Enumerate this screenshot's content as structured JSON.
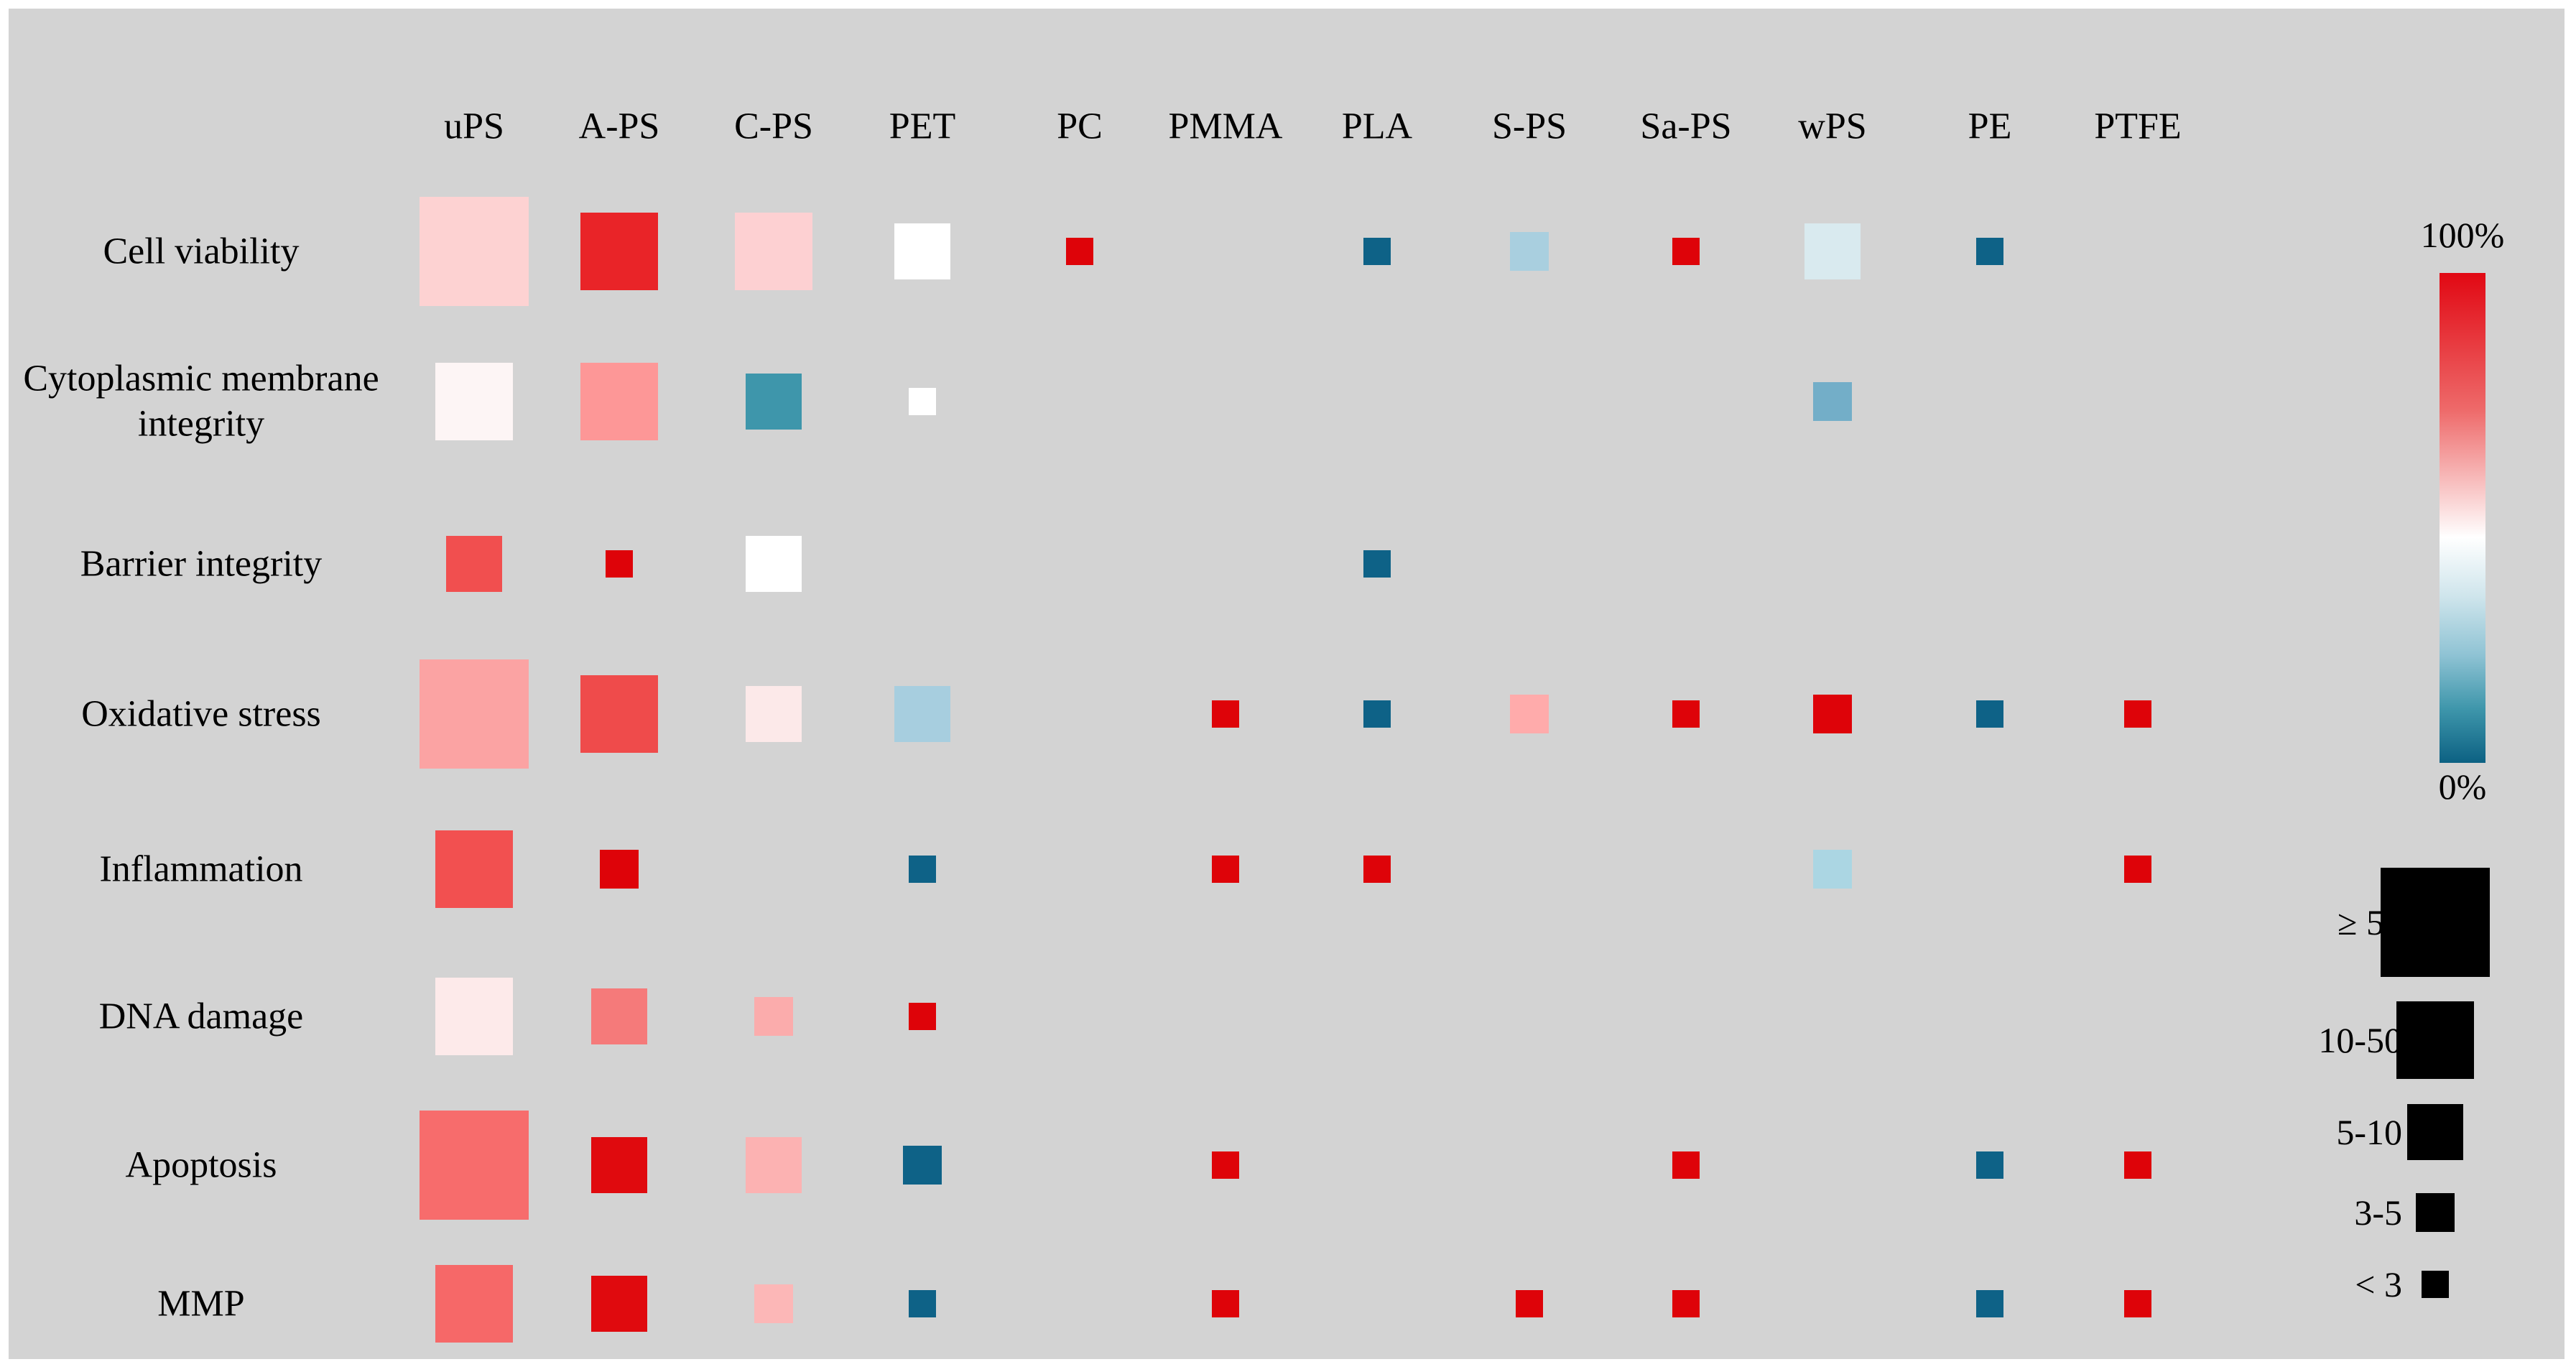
{
  "chart_data": {
    "type": "heatmap",
    "title": "",
    "x_axis_label": "",
    "y_axis_label": "",
    "columns": [
      "uPS",
      "A-PS",
      "C-PS",
      "PET",
      "PC",
      "PMMA",
      "PLA",
      "S-PS",
      "Sa-PS",
      "wPS",
      "PE",
      "PTFE"
    ],
    "rows": [
      "Cell viability",
      "Cytoplasmic membrane integrity",
      "Barrier integrity",
      "Oxidative stress",
      "Inflammation",
      "DNA damage",
      "Apoptosis",
      "MMP"
    ],
    "legend": {
      "color_scale": {
        "top_label": "100%",
        "bottom_label": "0%",
        "stops": [
          [
            "#e10813",
            0
          ],
          [
            "#ee6a6a",
            28
          ],
          [
            "#ffffff",
            54
          ],
          [
            "#cfe5ec",
            66
          ],
          [
            "#8fc3d4",
            78
          ],
          [
            "#3e96ab",
            89
          ],
          [
            "#0c6183",
            100
          ]
        ]
      },
      "size_scale": {
        "square_color": "#000000",
        "entries": [
          {
            "label": "≥ 50",
            "studies": "≥ 50"
          },
          {
            "label": "10-50",
            "studies": "10-50"
          },
          {
            "label": "5-10",
            "studies": "5-10"
          },
          {
            "label": "3-5",
            "studies": "3-5"
          },
          {
            "label": "< 3",
            "studies": "< 3"
          }
        ]
      }
    },
    "cells": [
      {
        "row": "Cell viability",
        "col": "uPS",
        "studies": "≥ 50",
        "color": "#fdd2d2"
      },
      {
        "row": "Cell viability",
        "col": "A-PS",
        "studies": "10-50",
        "color": "#e92428"
      },
      {
        "row": "Cell viability",
        "col": "C-PS",
        "studies": "10-50",
        "color": "#fdd0d2"
      },
      {
        "row": "Cell viability",
        "col": "PET",
        "studies": "5-10",
        "color": "#ffffff"
      },
      {
        "row": "Cell viability",
        "col": "PC",
        "studies": "< 3",
        "color": "#de0309"
      },
      {
        "row": "Cell viability",
        "col": "PLA",
        "studies": "< 3",
        "color": "#0e6287"
      },
      {
        "row": "Cell viability",
        "col": "S-PS",
        "studies": "3-5",
        "color": "#a9cfdf"
      },
      {
        "row": "Cell viability",
        "col": "Sa-PS",
        "studies": "< 3",
        "color": "#de0309"
      },
      {
        "row": "Cell viability",
        "col": "wPS",
        "studies": "5-10",
        "color": "#d9eaef"
      },
      {
        "row": "Cell viability",
        "col": "PE",
        "studies": "< 3",
        "color": "#0e6287"
      },
      {
        "row": "Cytoplasmic membrane integrity",
        "col": "uPS",
        "studies": "10-50",
        "color": "#fdf5f5"
      },
      {
        "row": "Cytoplasmic membrane integrity",
        "col": "A-PS",
        "studies": "10-50",
        "color": "#fd9797"
      },
      {
        "row": "Cytoplasmic membrane integrity",
        "col": "C-PS",
        "studies": "5-10",
        "color": "#3e96ab"
      },
      {
        "row": "Cytoplasmic membrane integrity",
        "col": "PET",
        "studies": "< 3",
        "color": "#ffffff"
      },
      {
        "row": "Cytoplasmic membrane integrity",
        "col": "wPS",
        "studies": "3-5",
        "color": "#73aec8"
      },
      {
        "row": "Barrier integrity",
        "col": "uPS",
        "studies": "5-10",
        "color": "#f14f4f"
      },
      {
        "row": "Barrier integrity",
        "col": "A-PS",
        "studies": "< 3",
        "color": "#de0309"
      },
      {
        "row": "Barrier integrity",
        "col": "C-PS",
        "studies": "5-10",
        "color": "#ffffff"
      },
      {
        "row": "Barrier integrity",
        "col": "PLA",
        "studies": "< 3",
        "color": "#0e6287"
      },
      {
        "row": "Oxidative stress",
        "col": "uPS",
        "studies": "≥ 50",
        "color": "#fba3a3"
      },
      {
        "row": "Oxidative stress",
        "col": "A-PS",
        "studies": "10-50",
        "color": "#ef4b4b"
      },
      {
        "row": "Oxidative stress",
        "col": "C-PS",
        "studies": "5-10",
        "color": "#fce9e9"
      },
      {
        "row": "Oxidative stress",
        "col": "PET",
        "studies": "5-10",
        "color": "#a7cedf"
      },
      {
        "row": "Oxidative stress",
        "col": "PMMA",
        "studies": "< 3",
        "color": "#de0309"
      },
      {
        "row": "Oxidative stress",
        "col": "PLA",
        "studies": "< 3",
        "color": "#0e6287"
      },
      {
        "row": "Oxidative stress",
        "col": "S-PS",
        "studies": "3-5",
        "color": "#ffabab"
      },
      {
        "row": "Oxidative stress",
        "col": "Sa-PS",
        "studies": "< 3",
        "color": "#de0309"
      },
      {
        "row": "Oxidative stress",
        "col": "wPS",
        "studies": "3-5",
        "color": "#de0309"
      },
      {
        "row": "Oxidative stress",
        "col": "PE",
        "studies": "< 3",
        "color": "#0e6287"
      },
      {
        "row": "Oxidative stress",
        "col": "PTFE",
        "studies": "< 3",
        "color": "#de0309"
      },
      {
        "row": "Inflammation",
        "col": "uPS",
        "studies": "10-50",
        "color": "#f25050"
      },
      {
        "row": "Inflammation",
        "col": "A-PS",
        "studies": "3-5",
        "color": "#de0309"
      },
      {
        "row": "Inflammation",
        "col": "PET",
        "studies": "< 3",
        "color": "#0e6287"
      },
      {
        "row": "Inflammation",
        "col": "PMMA",
        "studies": "< 3",
        "color": "#de0309"
      },
      {
        "row": "Inflammation",
        "col": "PLA",
        "studies": "< 3",
        "color": "#de0309"
      },
      {
        "row": "Inflammation",
        "col": "wPS",
        "studies": "3-5",
        "color": "#abd6e3"
      },
      {
        "row": "Inflammation",
        "col": "PTFE",
        "studies": "< 3",
        "color": "#de0309"
      },
      {
        "row": "DNA damage",
        "col": "uPS",
        "studies": "10-50",
        "color": "#fdeaea"
      },
      {
        "row": "DNA damage",
        "col": "A-PS",
        "studies": "5-10",
        "color": "#f57a7a"
      },
      {
        "row": "DNA damage",
        "col": "C-PS",
        "studies": "3-5",
        "color": "#fbacac"
      },
      {
        "row": "DNA damage",
        "col": "PET",
        "studies": "< 3",
        "color": "#de0309"
      },
      {
        "row": "Apoptosis",
        "col": "uPS",
        "studies": "≥ 50",
        "color": "#f76c6c"
      },
      {
        "row": "Apoptosis",
        "col": "A-PS",
        "studies": "5-10",
        "color": "#e00a0e"
      },
      {
        "row": "Apoptosis",
        "col": "C-PS",
        "studies": "5-10",
        "color": "#fcb2b2"
      },
      {
        "row": "Apoptosis",
        "col": "PET",
        "studies": "3-5",
        "color": "#0e6287"
      },
      {
        "row": "Apoptosis",
        "col": "PMMA",
        "studies": "< 3",
        "color": "#de0309"
      },
      {
        "row": "Apoptosis",
        "col": "Sa-PS",
        "studies": "< 3",
        "color": "#de0309"
      },
      {
        "row": "Apoptosis",
        "col": "PE",
        "studies": "< 3",
        "color": "#0e6287"
      },
      {
        "row": "Apoptosis",
        "col": "PTFE",
        "studies": "< 3",
        "color": "#de0309"
      },
      {
        "row": "MMP",
        "col": "uPS",
        "studies": "10-50",
        "color": "#f66868"
      },
      {
        "row": "MMP",
        "col": "A-PS",
        "studies": "5-10",
        "color": "#e00a0e"
      },
      {
        "row": "MMP",
        "col": "C-PS",
        "studies": "3-5",
        "color": "#fcb7b7"
      },
      {
        "row": "MMP",
        "col": "PET",
        "studies": "< 3",
        "color": "#0e6287"
      },
      {
        "row": "MMP",
        "col": "PMMA",
        "studies": "< 3",
        "color": "#de0309"
      },
      {
        "row": "MMP",
        "col": "S-PS",
        "studies": "< 3",
        "color": "#de0309"
      },
      {
        "row": "MMP",
        "col": "Sa-PS",
        "studies": "< 3",
        "color": "#de0309"
      },
      {
        "row": "MMP",
        "col": "PE",
        "studies": "< 3",
        "color": "#0e6287"
      },
      {
        "row": "MMP",
        "col": "PTFE",
        "studies": "< 3",
        "color": "#de0309"
      }
    ]
  }
}
